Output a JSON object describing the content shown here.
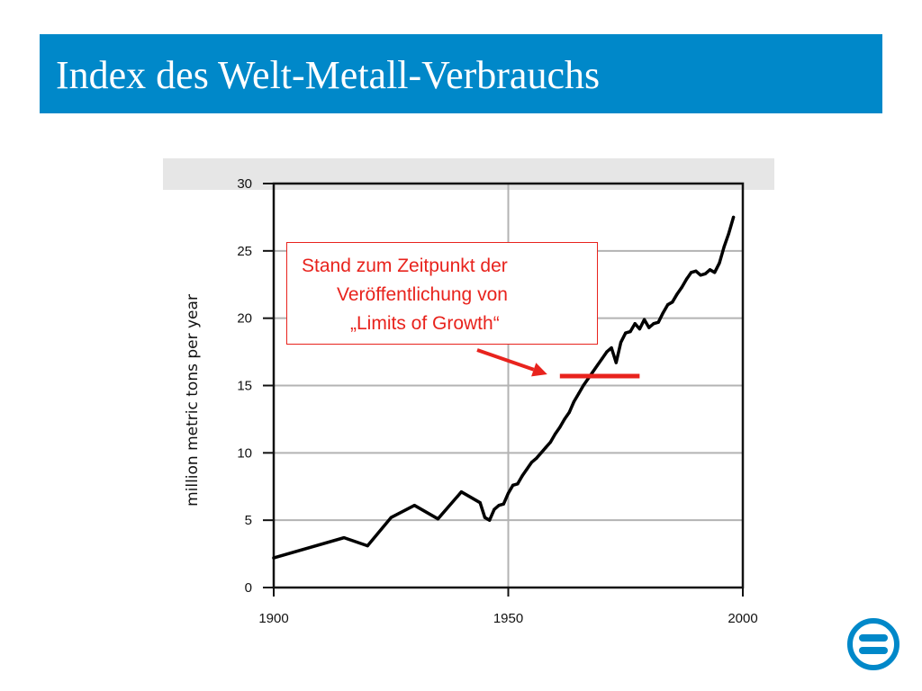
{
  "slide": {
    "title": "Index des Welt-Metall-Verbrauchs"
  },
  "colors": {
    "title_bar": "#0088c9",
    "line": "#000000",
    "grid": "#b3b3b3",
    "annotation": "#e8231d",
    "header_band": "#e6e6e6"
  },
  "icons": {
    "logo": "circle-equals-logo"
  },
  "chart_data": {
    "type": "line",
    "title": "",
    "xlabel": "",
    "ylabel": "million metric tons per year",
    "xlim": [
      1900,
      2000
    ],
    "ylim": [
      0,
      30
    ],
    "x_ticks": [
      "1900",
      "1950",
      "2000"
    ],
    "y_ticks": [
      "0",
      "5",
      "10",
      "15",
      "20",
      "25",
      "30"
    ],
    "grid": true,
    "legend": "none",
    "series": [
      {
        "x": [
          1900,
          1915,
          1920,
          1925,
          1930,
          1935,
          1940,
          1944,
          1945,
          1946,
          1947,
          1948,
          1949,
          1950,
          1951,
          1952,
          1953,
          1954,
          1955,
          1956,
          1957,
          1958,
          1959,
          1960,
          1961,
          1962,
          1963,
          1964,
          1965,
          1966,
          1967,
          1968,
          1969,
          1970,
          1971,
          1972,
          1973,
          1974,
          1975,
          1976,
          1977,
          1978,
          1979,
          1980,
          1981,
          1982,
          1983,
          1984,
          1985,
          1986,
          1987,
          1988,
          1989,
          1990,
          1991,
          1992,
          1993,
          1994,
          1995,
          1996,
          1997,
          1998
        ],
        "y": [
          2.2,
          3.7,
          3.1,
          5.2,
          6.1,
          5.1,
          7.1,
          6.3,
          5.2,
          5.0,
          5.8,
          6.1,
          6.2,
          7.0,
          7.6,
          7.7,
          8.3,
          8.8,
          9.3,
          9.6,
          10.0,
          10.4,
          10.8,
          11.4,
          11.9,
          12.5,
          13.0,
          13.8,
          14.4,
          15.0,
          15.5,
          16.0,
          16.5,
          17.0,
          17.5,
          17.8,
          16.7,
          18.2,
          18.9,
          19.0,
          19.6,
          19.2,
          19.9,
          19.3,
          19.6,
          19.7,
          20.4,
          21.0,
          21.2,
          21.8,
          22.3,
          22.9,
          23.4,
          23.5,
          23.2,
          23.3,
          23.6,
          23.4,
          24.1,
          25.3,
          26.3,
          27.5
        ]
      }
    ],
    "annotation": {
      "lines": [
        "Stand zum Zeitpunkt der",
        "Veröffentlichung von",
        "„Limits of Growth“"
      ],
      "marker": {
        "x_start": 1961,
        "x_end": 1978,
        "y": 15.7
      }
    }
  }
}
